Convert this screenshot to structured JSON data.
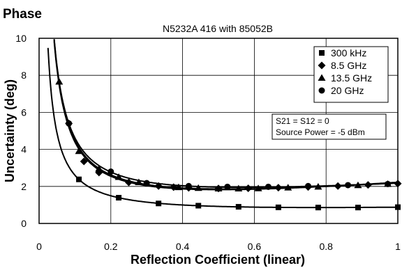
{
  "heading": "Phase",
  "chart_data": {
    "type": "scatter",
    "title": "N5232A 416 with 85052B",
    "xlabel": "Reflection Coefficient (linear)",
    "ylabel": "Uncertainty (deg)",
    "xlim": [
      0,
      1
    ],
    "ylim": [
      0,
      10
    ],
    "xticks": [
      "0",
      "0.2",
      "0.4",
      "0.6",
      "0.8",
      "1"
    ],
    "yticks": [
      "0",
      "2",
      "4",
      "6",
      "8",
      "10"
    ],
    "grid": true,
    "legend_position": "top-right",
    "annotation": [
      "S21 = S12 = 0",
      "Source Power = -5 dBm"
    ],
    "series": [
      {
        "name": "300 kHz",
        "marker": "square",
        "x": [
          0.111,
          0.222,
          0.333,
          0.444,
          0.556,
          0.667,
          0.778,
          0.889,
          1.0
        ],
        "y": [
          2.38,
          1.39,
          1.08,
          0.96,
          0.9,
          0.87,
          0.86,
          0.86,
          0.88
        ]
      },
      {
        "name": "8.5 GHz",
        "marker": "diamond",
        "x": [
          0.083,
          0.125,
          0.167,
          0.25,
          0.333,
          0.375,
          0.417,
          0.5,
          0.583,
          0.667,
          0.75,
          0.833,
          0.917,
          1.0
        ],
        "y": [
          5.4,
          3.35,
          2.75,
          2.22,
          2.02,
          1.96,
          1.92,
          1.89,
          1.9,
          1.93,
          1.97,
          2.02,
          2.08,
          2.15
        ]
      },
      {
        "name": "13.5 GHz",
        "marker": "triangle",
        "x": [
          0.056,
          0.111,
          0.167,
          0.222,
          0.278,
          0.389,
          0.444,
          0.5,
          0.556,
          0.611,
          0.694,
          0.778,
          0.889,
          0.972
        ],
        "y": [
          7.65,
          3.9,
          2.95,
          2.5,
          2.22,
          1.95,
          1.91,
          1.88,
          1.88,
          1.89,
          1.93,
          1.98,
          2.06,
          2.13
        ]
      },
      {
        "name": "20 GHz",
        "marker": "circle",
        "x": [
          0.083,
          0.2,
          0.3,
          0.417,
          0.525,
          0.639,
          0.75,
          0.861,
          0.972
        ],
        "y": [
          5.4,
          2.8,
          2.18,
          2.02,
          1.98,
          1.98,
          2.02,
          2.07,
          2.13
        ]
      }
    ]
  }
}
